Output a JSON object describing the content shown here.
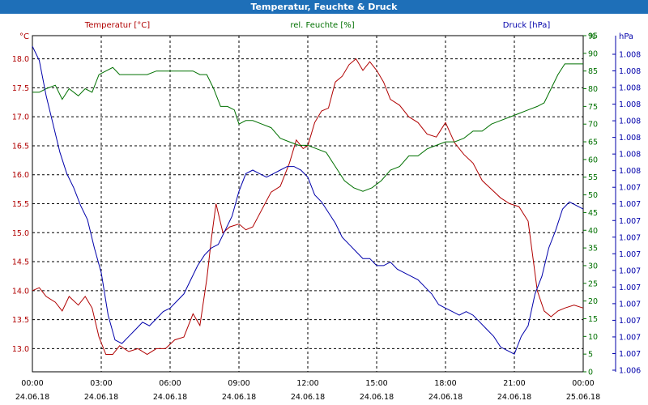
{
  "window": {
    "title": "Temperatur, Feuchte & Druck"
  },
  "chart_data": {
    "type": "line",
    "title": "Temperatur, Feuchte & Druck",
    "grid": true,
    "xlabel": "",
    "x_ticks": [
      {
        "time": "00:00",
        "date": "24.06.18"
      },
      {
        "time": "03:00",
        "date": "24.06.18"
      },
      {
        "time": "06:00",
        "date": "24.06.18"
      },
      {
        "time": "09:00",
        "date": "24.06.18"
      },
      {
        "time": "12:00",
        "date": "24.06.18"
      },
      {
        "time": "15:00",
        "date": "24.06.18"
      },
      {
        "time": "18:00",
        "date": "24.06.18"
      },
      {
        "time": "21:00",
        "date": "24.06.18"
      },
      {
        "time": "00:00",
        "date": "25.06.18"
      }
    ],
    "xlim_hours": [
      0,
      24
    ],
    "axes": {
      "temperature": {
        "label": "Temperatur [°C]",
        "unit": "°C",
        "color": "#b00000",
        "side": "left",
        "ylim": [
          12.6,
          18.4
        ],
        "ticks": [
          "13.0",
          "13.5",
          "14.0",
          "14.5",
          "15.0",
          "15.5",
          "16.0",
          "16.5",
          "17.0",
          "17.5",
          "18.0"
        ]
      },
      "humidity": {
        "label": "rel. Feuchte [%]",
        "unit": "%",
        "color": "#007000",
        "side": "right",
        "ylim": [
          0,
          95
        ],
        "ticks": [
          "0",
          "5",
          "10",
          "15",
          "20",
          "25",
          "30",
          "35",
          "40",
          "45",
          "50",
          "55",
          "60",
          "65",
          "70",
          "75",
          "80",
          "85",
          "90",
          "95"
        ]
      },
      "pressure": {
        "label": "Druck [hPa]",
        "unit": "hPa",
        "color": "#0000aa",
        "side": "right",
        "ticks": [
          "1.006",
          "1.007",
          "1.007",
          "1.007",
          "1.007",
          "1.007",
          "1.007",
          "1.007",
          "1.007",
          "1.007",
          "1.007",
          "1.007",
          "1.008",
          "1.008",
          "1.008",
          "1.008",
          "1.008",
          "1.008",
          "1.008",
          "1.008"
        ]
      }
    },
    "series": [
      {
        "name": "Temperatur [°C]",
        "axis": "temperature",
        "color": "#b00000",
        "x": [
          0,
          0.3,
          0.6,
          1,
          1.3,
          1.6,
          2,
          2.3,
          2.6,
          2.9,
          3.2,
          3.5,
          3.8,
          4.2,
          4.6,
          5,
          5.4,
          5.8,
          6.2,
          6.6,
          7,
          7.3,
          7.6,
          7.8,
          8,
          8.3,
          8.6,
          9,
          9.3,
          9.6,
          10,
          10.4,
          10.8,
          11.2,
          11.5,
          11.8,
          12,
          12.3,
          12.6,
          12.9,
          13.2,
          13.5,
          13.8,
          14.1,
          14.4,
          14.7,
          15,
          15.3,
          15.6,
          16,
          16.4,
          16.8,
          17.2,
          17.6,
          18,
          18.4,
          18.8,
          19.2,
          19.6,
          20,
          20.4,
          20.8,
          21.2,
          21.6,
          22,
          22.3,
          22.6,
          22.9,
          23.2,
          23.6,
          24
        ],
        "values": [
          14.0,
          14.05,
          13.9,
          13.8,
          13.65,
          13.9,
          13.75,
          13.9,
          13.7,
          13.2,
          12.9,
          12.9,
          13.05,
          12.95,
          13.0,
          12.9,
          13.0,
          13.0,
          13.15,
          13.2,
          13.6,
          13.4,
          14.2,
          14.9,
          15.5,
          15.0,
          15.1,
          15.15,
          15.05,
          15.1,
          15.4,
          15.7,
          15.8,
          16.2,
          16.6,
          16.45,
          16.5,
          16.9,
          17.1,
          17.15,
          17.6,
          17.7,
          17.9,
          18.0,
          17.8,
          17.95,
          17.8,
          17.6,
          17.3,
          17.2,
          17.0,
          16.9,
          16.7,
          16.65,
          16.9,
          16.55,
          16.35,
          16.2,
          15.9,
          15.75,
          15.6,
          15.5,
          15.45,
          15.2,
          14.0,
          13.65,
          13.55,
          13.65,
          13.7,
          13.75,
          13.7
        ]
      },
      {
        "name": "rel. Feuchte [%]",
        "axis": "humidity",
        "color": "#007000",
        "x": [
          0,
          0.3,
          0.6,
          1,
          1.3,
          1.6,
          2,
          2.3,
          2.6,
          2.9,
          3.2,
          3.5,
          3.8,
          4.2,
          4.6,
          5,
          5.4,
          5.8,
          6.2,
          6.6,
          7,
          7.3,
          7.6,
          7.9,
          8.2,
          8.5,
          8.8,
          9,
          9.3,
          9.6,
          10,
          10.4,
          10.8,
          11.2,
          11.6,
          12,
          12.4,
          12.8,
          13.2,
          13.6,
          14,
          14.4,
          14.8,
          15.2,
          15.6,
          16,
          16.4,
          16.8,
          17.2,
          17.6,
          18,
          18.4,
          18.8,
          19.2,
          19.6,
          20,
          20.4,
          20.8,
          21.2,
          21.6,
          22,
          22.3,
          22.6,
          22.9,
          23.2,
          23.6,
          24
        ],
        "values": [
          79,
          79,
          80,
          81,
          77,
          80,
          78,
          80,
          79,
          84,
          85,
          86,
          84,
          84,
          84,
          84,
          85,
          85,
          85,
          85,
          85,
          84,
          84,
          80,
          75,
          75,
          74,
          70,
          71,
          71,
          70,
          69,
          66,
          65,
          64,
          64,
          63,
          62,
          58,
          54,
          52,
          51,
          52,
          54,
          57,
          58,
          61,
          61,
          63,
          64,
          65,
          65,
          66,
          68,
          68,
          70,
          71,
          72,
          73,
          74,
          75,
          76,
          80,
          84,
          87,
          87,
          87
        ]
      },
      {
        "name": "Druck [hPa]",
        "axis": "pressure",
        "color": "#0000aa",
        "x": [
          0,
          0.3,
          0.6,
          0.9,
          1.2,
          1.5,
          1.8,
          2.1,
          2.4,
          2.7,
          3,
          3.3,
          3.6,
          3.9,
          4.2,
          4.5,
          4.8,
          5.1,
          5.4,
          5.7,
          6,
          6.3,
          6.6,
          6.9,
          7.2,
          7.5,
          7.8,
          8.1,
          8.4,
          8.7,
          9,
          9.3,
          9.6,
          9.9,
          10.2,
          10.5,
          10.8,
          11.1,
          11.4,
          11.7,
          12,
          12.3,
          12.6,
          12.9,
          13.2,
          13.5,
          13.8,
          14.1,
          14.4,
          14.7,
          15,
          15.3,
          15.6,
          15.9,
          16.2,
          16.5,
          16.8,
          17.1,
          17.4,
          17.7,
          18,
          18.3,
          18.6,
          18.9,
          19.2,
          19.5,
          19.8,
          20.1,
          20.4,
          20.7,
          21,
          21.3,
          21.6,
          21.9,
          22.2,
          22.5,
          22.8,
          23.1,
          23.4,
          23.7,
          24
        ],
        "values": [
          92,
          88,
          78,
          70,
          62,
          56,
          52,
          47,
          43,
          35,
          28,
          16,
          9,
          8,
          10,
          12,
          14,
          13,
          15,
          17,
          18,
          20,
          22,
          26,
          30,
          33,
          35,
          36,
          40,
          44,
          51,
          56,
          57,
          56,
          55,
          56,
          57,
          58,
          58,
          57,
          55,
          50,
          48,
          45,
          42,
          38,
          36,
          34,
          32,
          32,
          30,
          30,
          31,
          29,
          28,
          27,
          26,
          24,
          22,
          19,
          18,
          17,
          16,
          17,
          16,
          14,
          12,
          10,
          7,
          6,
          5,
          10,
          13,
          22,
          27,
          35,
          40,
          46,
          48,
          47,
          46
        ]
      }
    ]
  }
}
